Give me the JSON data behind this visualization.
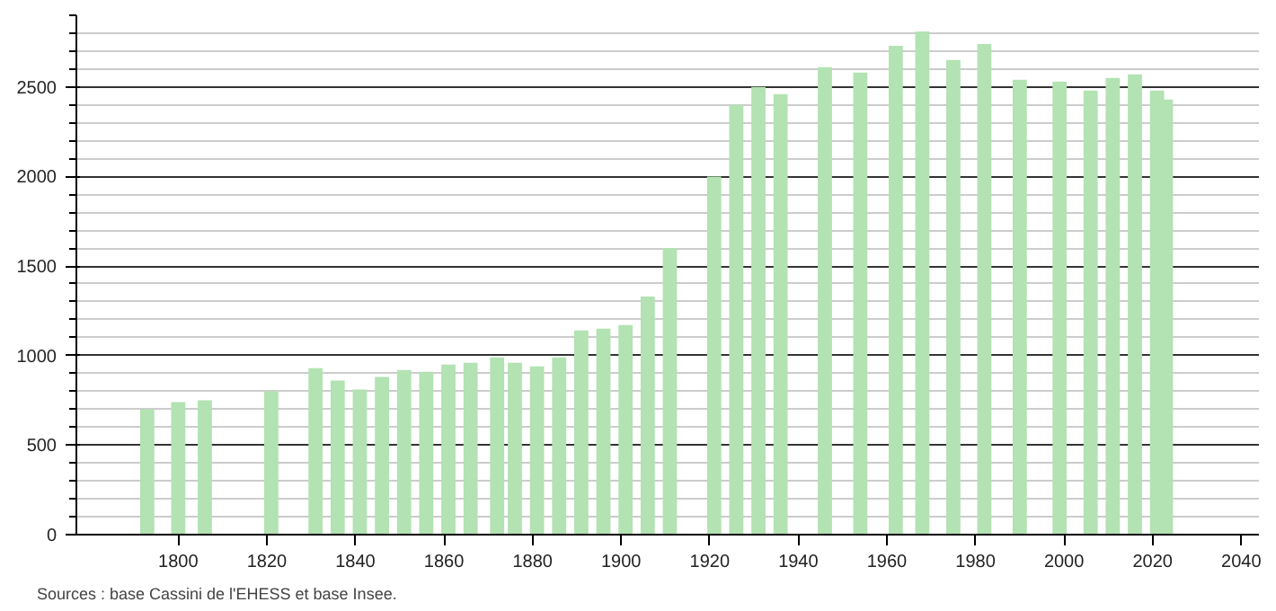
{
  "chart_data": {
    "type": "bar",
    "x": [
      1793,
      1800,
      1806,
      1821,
      1831,
      1836,
      1841,
      1846,
      1851,
      1856,
      1861,
      1866,
      1872,
      1876,
      1881,
      1886,
      1891,
      1896,
      1901,
      1906,
      1911,
      1921,
      1926,
      1931,
      1936,
      1946,
      1954,
      1962,
      1968,
      1975,
      1982,
      1990,
      1999,
      2006,
      2011,
      2016,
      2021,
      2023
    ],
    "values": [
      700,
      740,
      750,
      800,
      930,
      860,
      810,
      880,
      920,
      910,
      950,
      960,
      990,
      960,
      940,
      990,
      1140,
      1150,
      1170,
      1330,
      1600,
      2000,
      2400,
      2500,
      2460,
      2610,
      2580,
      2730,
      2810,
      2650,
      2740,
      2540,
      2530,
      2480,
      2550,
      2570,
      2480,
      2430
    ],
    "color": "#b3e2b3",
    "xlim": [
      1777,
      2044
    ],
    "ylim": [
      0,
      2900
    ],
    "xticks": [
      1800,
      1820,
      1840,
      1860,
      1880,
      1900,
      1920,
      1940,
      1960,
      1980,
      2000,
      2020,
      2040
    ],
    "yticks": [
      0,
      500,
      1000,
      1500,
      2000,
      2500
    ],
    "grid": "y",
    "annotations": [
      "Sources : base Cassini de l'EHESS et base Insee."
    ]
  }
}
